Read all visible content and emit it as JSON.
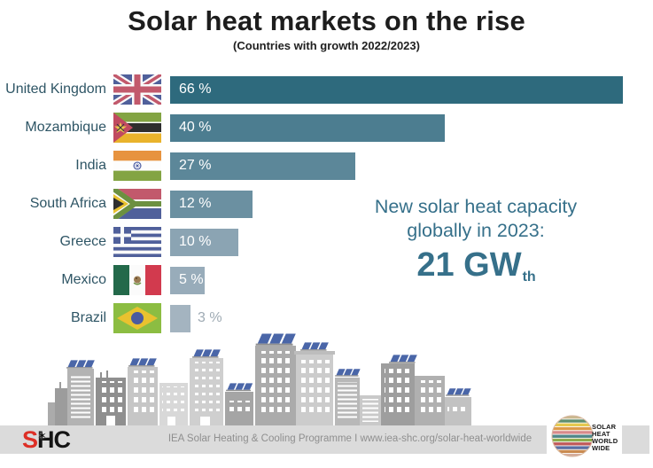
{
  "title": "Solar heat markets on the rise",
  "subtitle": "(Countries with growth 2022/2023)",
  "chart_data": {
    "type": "bar",
    "orientation": "horizontal",
    "categories": [
      "United Kingdom",
      "Mozambique",
      "India",
      "South Africa",
      "Greece",
      "Mexico",
      "Brazil"
    ],
    "values": [
      66,
      40,
      27,
      12,
      10,
      5,
      3
    ],
    "value_labels": [
      "66 %",
      "40 %",
      "27 %",
      "12 %",
      "10 %",
      "5 %",
      "3 %"
    ],
    "bar_colors": [
      "#2e6a7d",
      "#4c7d90",
      "#5c8799",
      "#6b90a1",
      "#8ba4b3",
      "#98acba",
      "#a4b4c0"
    ],
    "xlim": [
      0,
      66
    ],
    "flags": [
      "united-kingdom",
      "mozambique",
      "india",
      "south-africa",
      "greece",
      "mexico",
      "brazil"
    ],
    "label_color": "#2e5565",
    "outside_value_label": "Brazil"
  },
  "annotation": {
    "line1": "New solar heat capacity",
    "line2": "globally in 2023:",
    "value": "21 GW",
    "value_subscript": "th",
    "color": "#36708a"
  },
  "footer": {
    "text": "IEA Solar Heating & Cooling Programme I www.iea-shc.org/solar-heat-worldwide",
    "shc": {
      "s": "S",
      "hc": "HC",
      "star_glyph": "✶"
    },
    "worldwide_logo_lines": [
      "SOLAR",
      "HEAT",
      "WORLD",
      "WIDE"
    ],
    "worldwide_logo_colors": [
      "#c9b98f",
      "#5e8f6e",
      "#e5c94f",
      "#dd9b4a",
      "#d88b8b",
      "#4f8789",
      "#8fac4d",
      "#c05a5a",
      "#5b6ea3",
      "#c98a50",
      "#d4ac9c"
    ],
    "bar_background": "#dbdbdb",
    "text_color": "#8f8f8f"
  },
  "illustration": {
    "name": "city-skyline-with-rooftop-solar-panels",
    "panel_color": "#4a66a8",
    "building_grays": [
      "#8f8f8f",
      "#a5a5a5",
      "#b8b8b8",
      "#cccccc",
      "#d8d8d8"
    ]
  }
}
